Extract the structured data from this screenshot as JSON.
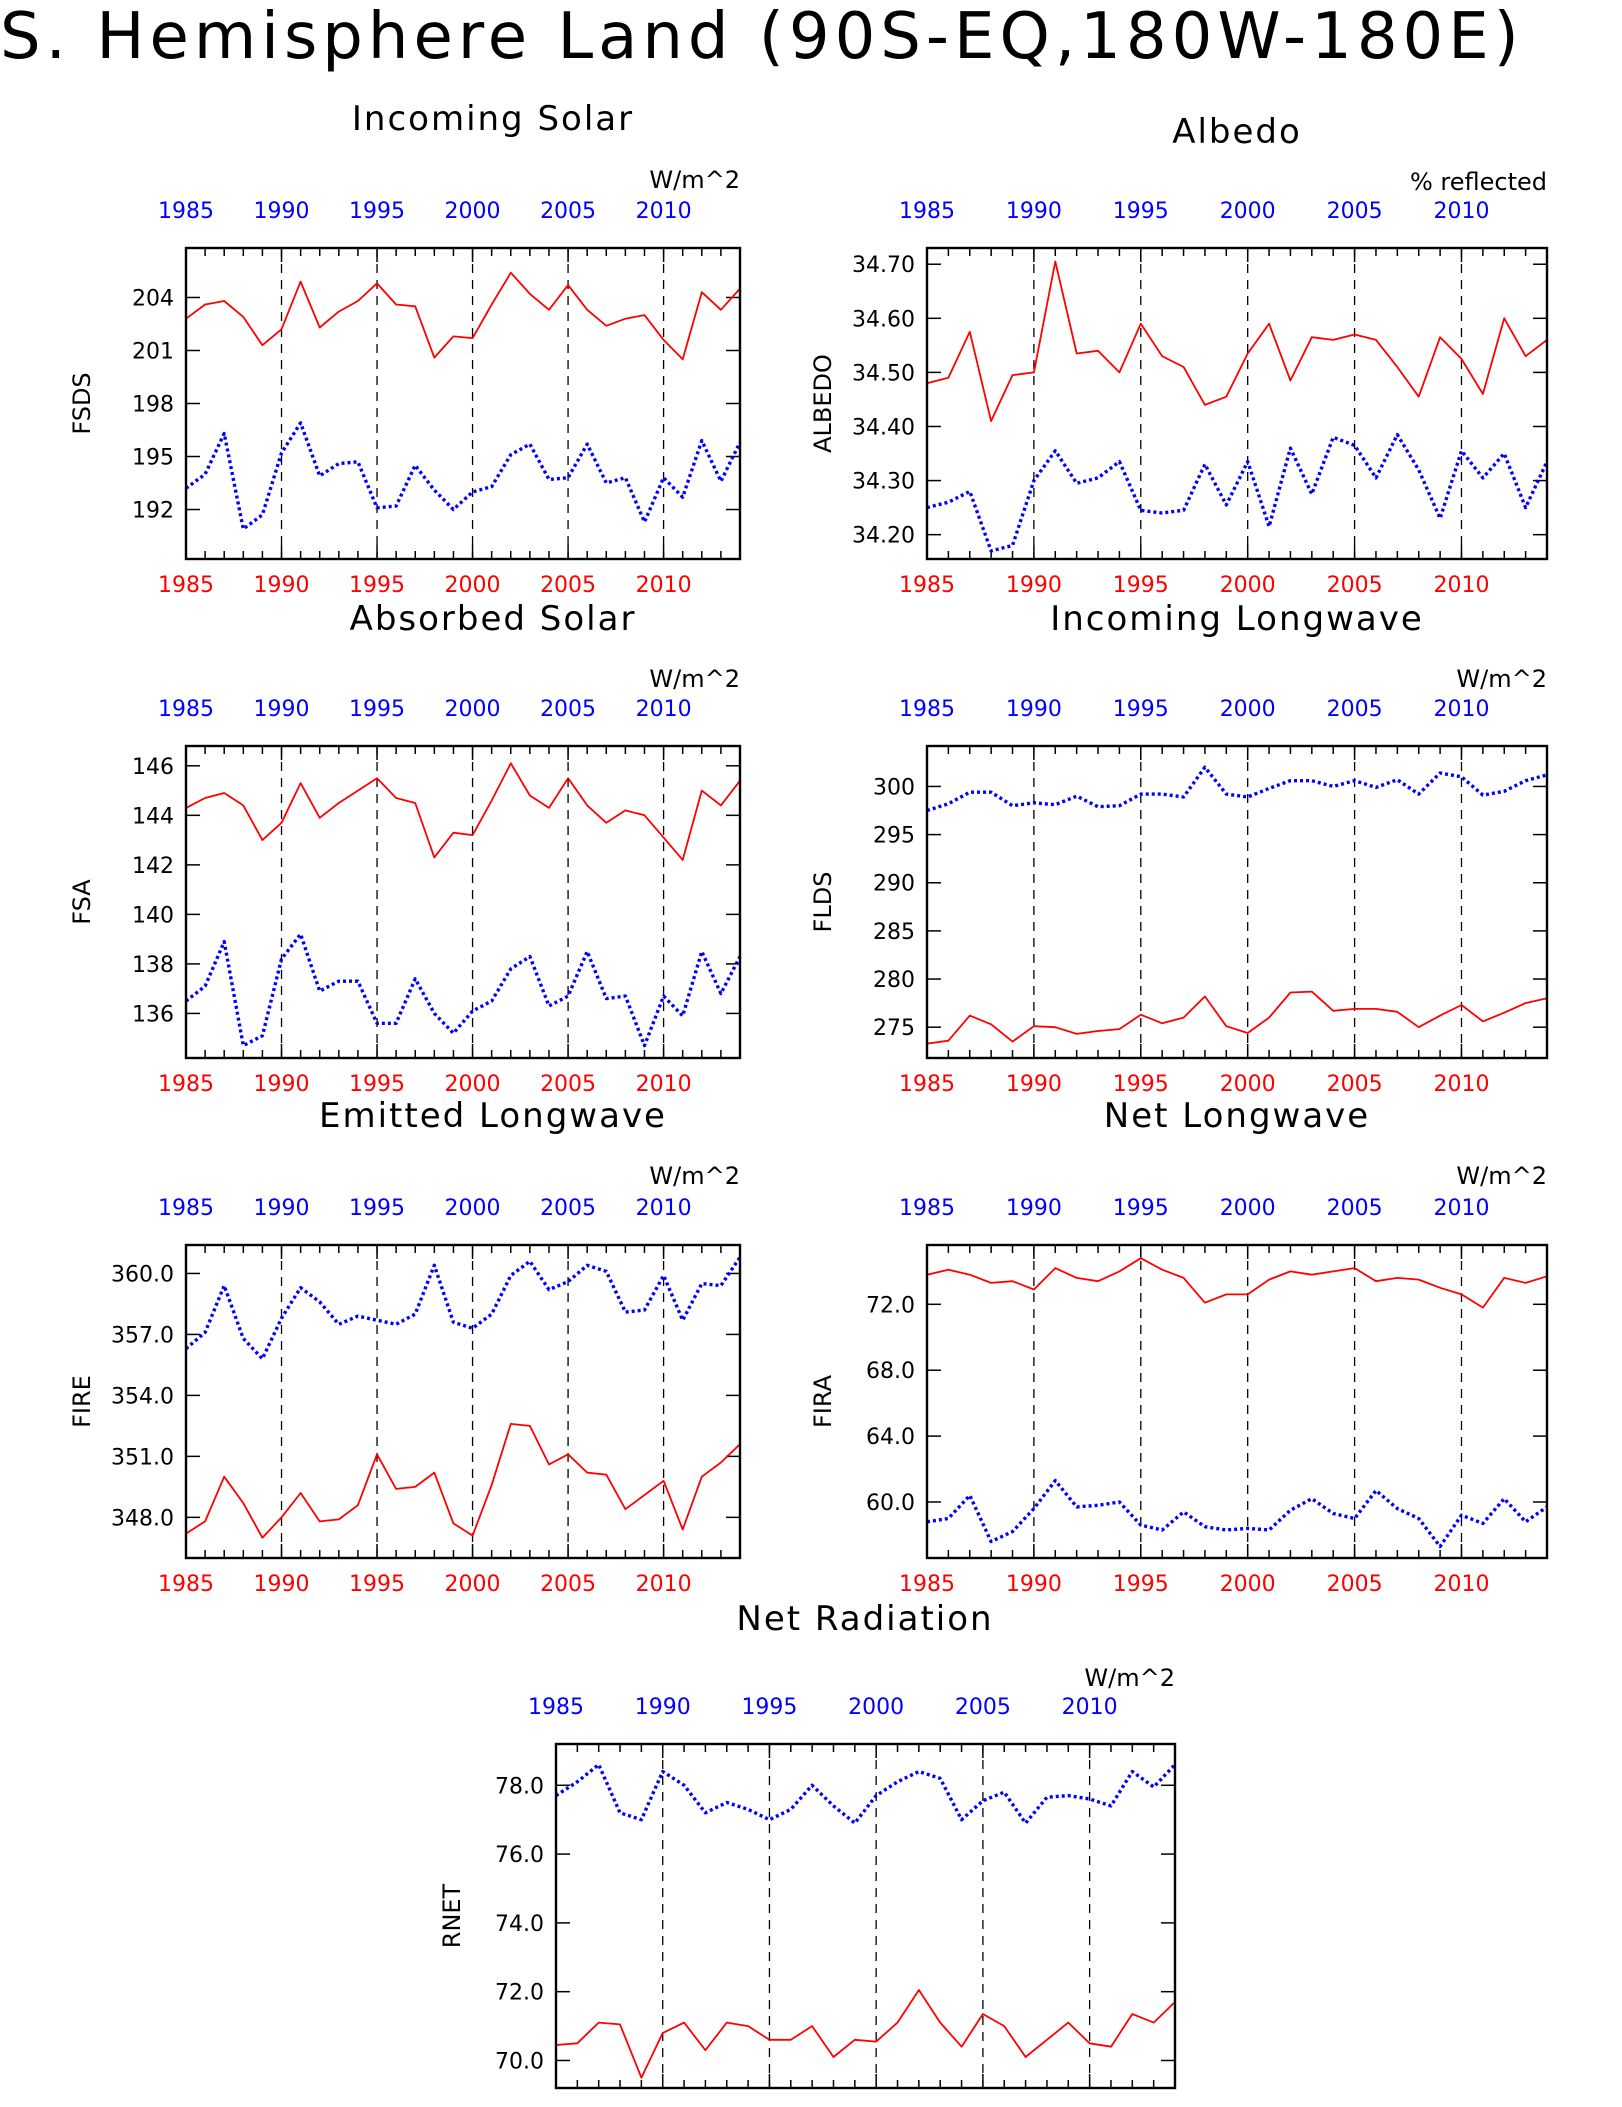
{
  "page_title": "S. Hemisphere Land (90S-EQ,180W-180E)",
  "colors": {
    "series_a": "#ff0000",
    "series_b": "#0000ff",
    "axis": "#000000"
  },
  "chart_data": [
    {
      "id": "incoming-solar",
      "type": "line",
      "title": "Incoming Solar",
      "units": "W/m^2",
      "ylabel": "FSDS",
      "xlim": [
        1985,
        2014
      ],
      "ylim": [
        189.2,
        206.8
      ],
      "yticks": [
        192,
        195,
        198,
        201,
        204
      ],
      "ytick_decimals": 0,
      "xticks": [
        1985,
        1990,
        1995,
        2000,
        2005,
        2010
      ],
      "x": [
        1985,
        1986,
        1987,
        1988,
        1989,
        1990,
        1991,
        1992,
        1993,
        1994,
        1995,
        1996,
        1997,
        1998,
        1999,
        2000,
        2001,
        2002,
        2003,
        2004,
        2005,
        2006,
        2007,
        2008,
        2009,
        2010,
        2011,
        2012,
        2013,
        2014
      ],
      "series": [
        {
          "color": "red",
          "style": "solid",
          "values": [
            202.8,
            203.6,
            203.8,
            202.9,
            201.3,
            202.2,
            204.9,
            202.3,
            203.2,
            203.8,
            204.8,
            203.6,
            203.5,
            200.6,
            201.8,
            201.7,
            203.6,
            205.4,
            204.2,
            203.3,
            204.7,
            203.3,
            202.4,
            202.8,
            203.0,
            201.6,
            200.5,
            204.3,
            203.3,
            204.5
          ]
        },
        {
          "color": "blue",
          "style": "dotted",
          "values": [
            193.2,
            194.0,
            196.3,
            190.9,
            191.7,
            195.2,
            196.9,
            193.9,
            194.6,
            194.7,
            192.1,
            192.2,
            194.5,
            193.1,
            192.0,
            193.0,
            193.3,
            195.1,
            195.7,
            193.7,
            193.8,
            195.7,
            193.5,
            193.8,
            191.3,
            193.8,
            192.7,
            195.9,
            193.6,
            195.8
          ]
        }
      ]
    },
    {
      "id": "albedo",
      "type": "line",
      "title": "Albedo",
      "units": "% reflected",
      "ylabel": "ALBEDO",
      "xlim": [
        1985,
        2014
      ],
      "ylim": [
        34.155,
        34.73
      ],
      "yticks": [
        34.2,
        34.3,
        34.4,
        34.5,
        34.6,
        34.7
      ],
      "ytick_decimals": 2,
      "xticks": [
        1985,
        1990,
        1995,
        2000,
        2005,
        2010
      ],
      "x": [
        1985,
        1986,
        1987,
        1988,
        1989,
        1990,
        1991,
        1992,
        1993,
        1994,
        1995,
        1996,
        1997,
        1998,
        1999,
        2000,
        2001,
        2002,
        2003,
        2004,
        2005,
        2006,
        2007,
        2008,
        2009,
        2010,
        2011,
        2012,
        2013,
        2014
      ],
      "series": [
        {
          "color": "red",
          "style": "solid",
          "values": [
            34.48,
            34.49,
            34.575,
            34.41,
            34.495,
            34.5,
            34.705,
            34.535,
            34.54,
            34.5,
            34.59,
            34.53,
            34.51,
            34.44,
            34.455,
            34.535,
            34.59,
            34.485,
            34.565,
            34.56,
            34.57,
            34.56,
            34.51,
            34.455,
            34.565,
            34.525,
            34.46,
            34.6,
            34.53,
            34.56
          ]
        },
        {
          "color": "blue",
          "style": "dotted",
          "values": [
            34.25,
            34.26,
            34.28,
            34.17,
            34.18,
            34.3,
            34.355,
            34.295,
            34.305,
            34.335,
            34.245,
            34.24,
            34.245,
            34.33,
            34.255,
            34.335,
            34.215,
            34.36,
            34.275,
            34.38,
            34.365,
            34.305,
            34.385,
            34.32,
            34.23,
            34.355,
            34.305,
            34.35,
            34.25,
            34.335
          ]
        }
      ]
    },
    {
      "id": "absorbed-solar",
      "type": "line",
      "title": "Absorbed Solar",
      "units": "W/m^2",
      "ylabel": "FSA",
      "xlim": [
        1985,
        2014
      ],
      "ylim": [
        134.2,
        146.8
      ],
      "yticks": [
        136,
        138,
        140,
        142,
        144,
        146
      ],
      "ytick_decimals": 0,
      "xticks": [
        1985,
        1990,
        1995,
        2000,
        2005,
        2010
      ],
      "x": [
        1985,
        1986,
        1987,
        1988,
        1989,
        1990,
        1991,
        1992,
        1993,
        1994,
        1995,
        1996,
        1997,
        1998,
        1999,
        2000,
        2001,
        2002,
        2003,
        2004,
        2005,
        2006,
        2007,
        2008,
        2009,
        2010,
        2011,
        2012,
        2013,
        2014
      ],
      "series": [
        {
          "color": "red",
          "style": "solid",
          "values": [
            144.3,
            144.7,
            144.9,
            144.4,
            143.0,
            143.7,
            145.3,
            143.9,
            144.5,
            145.0,
            145.5,
            144.7,
            144.5,
            142.3,
            143.3,
            143.2,
            144.6,
            146.1,
            144.8,
            144.3,
            145.5,
            144.4,
            143.7,
            144.2,
            144.0,
            143.1,
            142.2,
            145.0,
            144.4,
            145.4
          ]
        },
        {
          "color": "blue",
          "style": "dotted",
          "values": [
            136.5,
            137.1,
            138.9,
            134.7,
            135.1,
            138.2,
            139.2,
            136.9,
            137.3,
            137.3,
            135.6,
            135.6,
            137.4,
            136.0,
            135.2,
            136.1,
            136.5,
            137.8,
            138.3,
            136.3,
            136.7,
            138.5,
            136.6,
            136.7,
            134.7,
            136.7,
            135.9,
            138.5,
            136.8,
            138.3
          ]
        }
      ]
    },
    {
      "id": "incoming-longwave",
      "type": "line",
      "title": "Incoming Longwave",
      "units": "W/m^2",
      "ylabel": "FLDS",
      "xlim": [
        1985,
        2014
      ],
      "ylim": [
        271.8,
        304.2
      ],
      "yticks": [
        275,
        280,
        285,
        290,
        295,
        300
      ],
      "ytick_decimals": 0,
      "xticks": [
        1985,
        1990,
        1995,
        2000,
        2005,
        2010
      ],
      "x": [
        1985,
        1986,
        1987,
        1988,
        1989,
        1990,
        1991,
        1992,
        1993,
        1994,
        1995,
        1996,
        1997,
        1998,
        1999,
        2000,
        2001,
        2002,
        2003,
        2004,
        2005,
        2006,
        2007,
        2008,
        2009,
        2010,
        2011,
        2012,
        2013,
        2014
      ],
      "series": [
        {
          "color": "red",
          "style": "solid",
          "values": [
            273.3,
            273.6,
            276.2,
            275.3,
            273.5,
            275.1,
            275.0,
            274.3,
            274.6,
            274.8,
            276.3,
            275.4,
            276.0,
            278.2,
            275.1,
            274.4,
            276.0,
            278.6,
            278.7,
            276.7,
            276.9,
            276.9,
            276.6,
            275.0,
            276.2,
            277.3,
            275.6,
            276.5,
            277.5,
            278.0
          ]
        },
        {
          "color": "blue",
          "style": "dotted",
          "values": [
            297.5,
            298.2,
            299.4,
            299.4,
            298.0,
            298.3,
            298.1,
            299.0,
            297.9,
            298.0,
            299.2,
            299.2,
            298.9,
            302.0,
            299.2,
            298.9,
            299.8,
            300.6,
            300.6,
            300.0,
            300.6,
            299.9,
            300.7,
            299.2,
            301.4,
            301.0,
            299.1,
            299.5,
            300.6,
            301.2
          ]
        }
      ]
    },
    {
      "id": "emitted-longwave",
      "type": "line",
      "title": "Emitted Longwave",
      "units": "W/m^2",
      "ylabel": "FIRE",
      "xlim": [
        1985,
        2014
      ],
      "ylim": [
        346.0,
        361.4
      ],
      "yticks": [
        348,
        351,
        354,
        357,
        360
      ],
      "ytick_decimals": 1,
      "xticks": [
        1985,
        1990,
        1995,
        2000,
        2005,
        2010
      ],
      "x": [
        1985,
        1986,
        1987,
        1988,
        1989,
        1990,
        1991,
        1992,
        1993,
        1994,
        1995,
        1996,
        1997,
        1998,
        1999,
        2000,
        2001,
        2002,
        2003,
        2004,
        2005,
        2006,
        2007,
        2008,
        2009,
        2010,
        2011,
        2012,
        2013,
        2014
      ],
      "series": [
        {
          "color": "red",
          "style": "solid",
          "values": [
            347.2,
            347.8,
            350.0,
            348.7,
            347.0,
            348.0,
            349.2,
            347.8,
            347.9,
            348.6,
            351.1,
            349.4,
            349.5,
            350.2,
            347.7,
            347.1,
            349.6,
            352.6,
            352.5,
            350.6,
            351.1,
            350.2,
            350.1,
            348.4,
            349.1,
            349.8,
            347.4,
            350.0,
            350.7,
            351.6
          ]
        },
        {
          "color": "blue",
          "style": "dotted",
          "values": [
            356.3,
            357.1,
            359.4,
            356.8,
            355.8,
            357.8,
            359.3,
            358.6,
            357.5,
            357.9,
            357.7,
            357.5,
            358.0,
            360.4,
            357.6,
            357.3,
            358.0,
            359.9,
            360.6,
            359.2,
            359.6,
            360.4,
            360.1,
            358.1,
            358.2,
            359.9,
            357.7,
            359.5,
            359.4,
            360.8
          ]
        }
      ]
    },
    {
      "id": "net-longwave",
      "type": "line",
      "title": "Net Longwave",
      "units": "W/m^2",
      "ylabel": "FIRA",
      "xlim": [
        1985,
        2014
      ],
      "ylim": [
        56.6,
        75.6
      ],
      "yticks": [
        60,
        64,
        68,
        72
      ],
      "ytick_decimals": 1,
      "xticks": [
        1985,
        1990,
        1995,
        2000,
        2005,
        2010
      ],
      "x": [
        1985,
        1986,
        1987,
        1988,
        1989,
        1990,
        1991,
        1992,
        1993,
        1994,
        1995,
        1996,
        1997,
        1998,
        1999,
        2000,
        2001,
        2002,
        2003,
        2004,
        2005,
        2006,
        2007,
        2008,
        2009,
        2010,
        2011,
        2012,
        2013,
        2014
      ],
      "series": [
        {
          "color": "red",
          "style": "solid",
          "values": [
            73.8,
            74.1,
            73.8,
            73.3,
            73.4,
            72.9,
            74.2,
            73.6,
            73.4,
            74.0,
            74.8,
            74.1,
            73.6,
            72.1,
            72.6,
            72.6,
            73.5,
            74.0,
            73.8,
            74.0,
            74.2,
            73.4,
            73.6,
            73.5,
            73.0,
            72.6,
            71.8,
            73.6,
            73.3,
            73.7
          ]
        },
        {
          "color": "blue",
          "style": "dotted",
          "values": [
            58.8,
            59.0,
            60.4,
            57.6,
            58.2,
            59.6,
            61.3,
            59.7,
            59.8,
            60.0,
            58.6,
            58.3,
            59.4,
            58.5,
            58.3,
            58.4,
            58.3,
            59.5,
            60.2,
            59.3,
            59.0,
            60.7,
            59.6,
            59.0,
            57.3,
            59.2,
            58.7,
            60.2,
            58.8,
            59.7
          ]
        }
      ]
    },
    {
      "id": "net-radiation",
      "type": "line",
      "title": "Net Radiation",
      "units": "W/m^2",
      "ylabel": "RNET",
      "xlim": [
        1985,
        2014
      ],
      "ylim": [
        69.2,
        79.2
      ],
      "yticks": [
        70,
        72,
        74,
        76,
        78
      ],
      "ytick_decimals": 1,
      "xticks": [
        1985,
        1990,
        1995,
        2000,
        2005,
        2010
      ],
      "x": [
        1985,
        1986,
        1987,
        1988,
        1989,
        1990,
        1991,
        1992,
        1993,
        1994,
        1995,
        1996,
        1997,
        1998,
        1999,
        2000,
        2001,
        2002,
        2003,
        2004,
        2005,
        2006,
        2007,
        2008,
        2009,
        2010,
        2011,
        2012,
        2013,
        2014
      ],
      "series": [
        {
          "color": "red",
          "style": "solid",
          "values": [
            70.45,
            70.5,
            71.1,
            71.05,
            69.5,
            70.8,
            71.1,
            70.3,
            71.1,
            71.0,
            70.6,
            70.6,
            71.0,
            70.1,
            70.6,
            70.55,
            71.1,
            72.05,
            71.1,
            70.4,
            71.35,
            71.0,
            70.1,
            70.6,
            71.1,
            70.5,
            70.4,
            71.35,
            71.1,
            71.7
          ]
        },
        {
          "color": "blue",
          "style": "dotted",
          "values": [
            77.7,
            78.1,
            78.6,
            77.2,
            77.0,
            78.4,
            78.0,
            77.2,
            77.5,
            77.3,
            77.0,
            77.3,
            78.0,
            77.4,
            76.9,
            77.7,
            78.1,
            78.4,
            78.2,
            77.0,
            77.55,
            77.8,
            76.9,
            77.65,
            77.7,
            77.6,
            77.4,
            78.4,
            77.95,
            78.6
          ]
        }
      ]
    }
  ]
}
